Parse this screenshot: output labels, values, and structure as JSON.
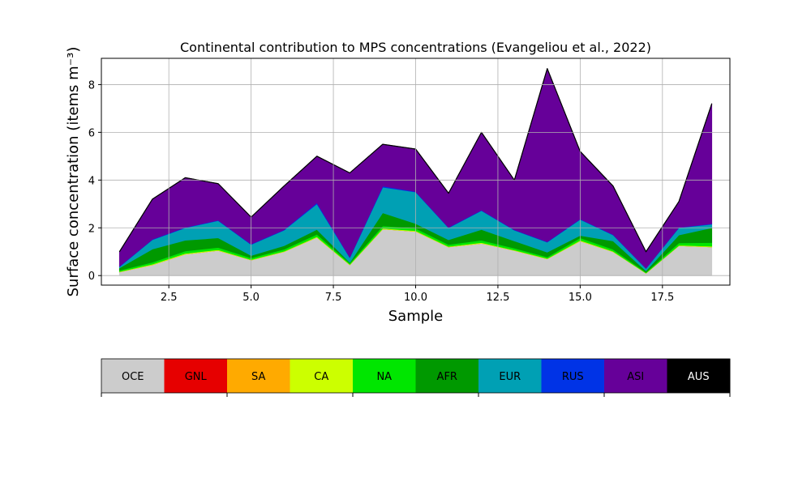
{
  "chart_data": {
    "type": "area",
    "stacked": true,
    "title": "Continental contribution to MPS concentrations (Evangeliou et al., 2022)",
    "xlabel": "Sample",
    "ylabel": "Surface concentration (items m⁻³)",
    "xlim": [
      0.45,
      19.55
    ],
    "ylim": [
      -0.4,
      9.1
    ],
    "xticks": [
      2.5,
      5.0,
      7.5,
      10.0,
      12.5,
      15.0,
      17.5
    ],
    "xtick_labels": [
      "2.5",
      "5.0",
      "7.5",
      "10.0",
      "12.5",
      "15.0",
      "17.5"
    ],
    "yticks": [
      0,
      2,
      4,
      6,
      8
    ],
    "ytick_labels": [
      "0",
      "2",
      "4",
      "6",
      "8"
    ],
    "grid": true,
    "legend_position": "colorbar-below",
    "x": [
      1,
      2,
      3,
      4,
      5,
      6,
      7,
      8,
      9,
      10,
      11,
      12,
      13,
      14,
      15,
      16,
      17,
      18,
      19
    ],
    "series": [
      {
        "name": "OCE",
        "color": "#cccccc",
        "values": [
          0.15,
          0.45,
          0.9,
          1.05,
          0.65,
          1.0,
          1.6,
          0.45,
          1.95,
          1.85,
          1.2,
          1.35,
          1.05,
          0.7,
          1.45,
          1.0,
          0.1,
          1.25,
          1.2
        ]
      },
      {
        "name": "GNL",
        "color": "#e60000",
        "values": [
          0,
          0,
          0,
          0,
          0,
          0,
          0,
          0,
          0,
          0,
          0,
          0,
          0,
          0,
          0,
          0,
          0,
          0,
          0
        ]
      },
      {
        "name": "SA",
        "color": "#ffaa00",
        "values": [
          0,
          0,
          0,
          0,
          0,
          0,
          0,
          0,
          0,
          0,
          0,
          0,
          0,
          0,
          0,
          0,
          0,
          0,
          0
        ]
      },
      {
        "name": "CA",
        "color": "#ccff00",
        "values": [
          0.02,
          0.03,
          0.03,
          0.03,
          0.02,
          0.02,
          0.03,
          0.02,
          0.03,
          0.03,
          0.02,
          0.03,
          0.02,
          0.02,
          0.03,
          0.02,
          0.01,
          0.02,
          0.03
        ]
      },
      {
        "name": "NA",
        "color": "#00e600",
        "values": [
          0.05,
          0.08,
          0.1,
          0.1,
          0.07,
          0.08,
          0.1,
          0.05,
          0.1,
          0.1,
          0.08,
          0.1,
          0.08,
          0.06,
          0.1,
          0.08,
          0.03,
          0.1,
          0.15
        ]
      },
      {
        "name": "AFR",
        "color": "#009900",
        "values": [
          0.1,
          0.55,
          0.45,
          0.4,
          0.1,
          0.15,
          0.2,
          0.03,
          0.55,
          0.2,
          0.2,
          0.45,
          0.3,
          0.2,
          0.1,
          0.35,
          0.06,
          0.33,
          0.62
        ]
      },
      {
        "name": "EUR",
        "color": "#00a0b4",
        "values": [
          0.05,
          0.39,
          0.52,
          0.72,
          0.46,
          0.65,
          1.07,
          0.2,
          1.07,
          1.32,
          0.5,
          0.79,
          0.45,
          0.42,
          0.67,
          0.25,
          0.1,
          0.3,
          0.15
        ]
      },
      {
        "name": "RUS",
        "color": "#0033e6",
        "values": [
          0.02,
          0.02,
          0.02,
          0.02,
          0.02,
          0.02,
          0.05,
          0.02,
          0.05,
          0.02,
          0.02,
          0.02,
          0.02,
          0.02,
          0.02,
          0.02,
          0.01,
          0.02,
          0.02
        ]
      },
      {
        "name": "ASI",
        "color": "#660099",
        "values": [
          0.61,
          1.68,
          2.08,
          1.53,
          1.13,
          1.83,
          1.95,
          3.53,
          1.75,
          1.78,
          1.43,
          3.26,
          2.08,
          7.25,
          2.83,
          2.03,
          0.69,
          1.08,
          5.03
        ]
      },
      {
        "name": "AUS",
        "color": "#000000",
        "values": [
          0,
          0,
          0,
          0,
          0,
          0,
          0,
          0,
          0,
          0,
          0,
          0,
          0,
          0,
          0,
          0,
          0,
          0,
          0
        ]
      }
    ]
  }
}
